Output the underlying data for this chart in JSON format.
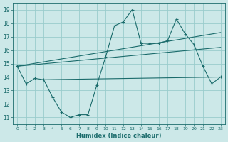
{
  "xlabel": "Humidex (Indice chaleur)",
  "ylabel": "",
  "xlim": [
    -0.5,
    23.5
  ],
  "ylim": [
    10.5,
    19.5
  ],
  "xticks": [
    0,
    1,
    2,
    3,
    4,
    5,
    6,
    7,
    8,
    9,
    10,
    11,
    12,
    13,
    14,
    15,
    16,
    17,
    18,
    19,
    20,
    21,
    22,
    23
  ],
  "yticks": [
    11,
    12,
    13,
    14,
    15,
    16,
    17,
    18,
    19
  ],
  "background_color": "#cce8e8",
  "grid_color": "#99cccc",
  "line_color": "#1a6b6b",
  "main_line_x": [
    0,
    1,
    2,
    3,
    4,
    5,
    6,
    7,
    8,
    9,
    10,
    11,
    12,
    13,
    14,
    15,
    16,
    17,
    18,
    19,
    20,
    21,
    22,
    23
  ],
  "main_line_y": [
    14.8,
    13.5,
    13.9,
    13.8,
    12.5,
    11.4,
    11.0,
    11.2,
    11.2,
    13.4,
    15.5,
    17.8,
    18.1,
    19.0,
    16.5,
    16.5,
    16.5,
    16.7,
    18.3,
    17.2,
    16.4,
    14.8,
    13.5,
    14.0
  ],
  "trend_line1_x": [
    0,
    23
  ],
  "trend_line1_y": [
    14.8,
    17.3
  ],
  "trend_line2_x": [
    0,
    23
  ],
  "trend_line2_y": [
    14.8,
    16.2
  ],
  "trend_line3_x": [
    3,
    23
  ],
  "trend_line3_y": [
    13.8,
    14.0
  ]
}
